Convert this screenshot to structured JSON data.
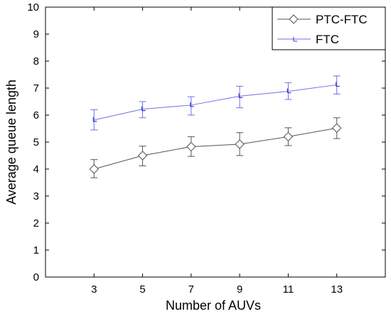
{
  "chart_data": {
    "type": "line",
    "xlabel": "Number of AUVs",
    "ylabel": "Average queue length",
    "xlim": [
      1,
      15
    ],
    "ylim": [
      0,
      10
    ],
    "xticks": [
      "3",
      "5",
      "7",
      "9",
      "11",
      "13"
    ],
    "yticks": [
      "0",
      "1",
      "2",
      "3",
      "4",
      "5",
      "6",
      "7",
      "8",
      "9",
      "10"
    ],
    "x": [
      3,
      5,
      7,
      9,
      11,
      13
    ],
    "grid": false,
    "legend_position": "top-right",
    "series": [
      {
        "name": "PTC-FTC",
        "color": "#555555",
        "marker": "diamond",
        "values": [
          4.0,
          4.5,
          4.83,
          4.92,
          5.2,
          5.52
        ],
        "err_low": [
          3.68,
          4.12,
          4.47,
          4.5,
          4.87,
          5.13
        ],
        "err_high": [
          4.35,
          4.85,
          5.2,
          5.35,
          5.53,
          5.9
        ]
      },
      {
        "name": "FTC",
        "color": "#6f6fe6",
        "marker": "tick",
        "values": [
          5.82,
          6.22,
          6.37,
          6.7,
          6.88,
          7.12
        ],
        "err_low": [
          5.45,
          5.9,
          6.0,
          6.27,
          6.58,
          6.78
        ],
        "err_high": [
          6.2,
          6.5,
          6.68,
          7.07,
          7.2,
          7.45
        ]
      }
    ]
  }
}
